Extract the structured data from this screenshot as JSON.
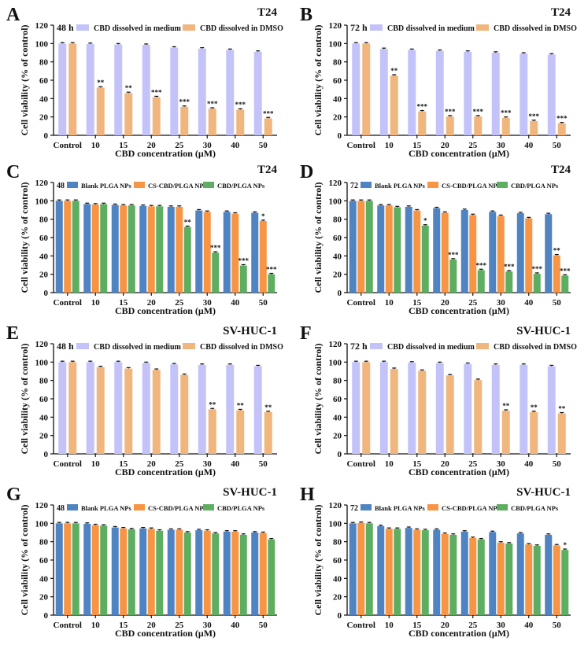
{
  "figure": {
    "ylabel": "Cell viability (% of control)",
    "xlabel": "CBD concentration (μM)",
    "categories": [
      "Control",
      "10",
      "15",
      "20",
      "25",
      "30",
      "40",
      "50"
    ],
    "yticks": [
      "0",
      "20",
      "40",
      "60",
      "80",
      "100",
      "120"
    ]
  },
  "chart_data": [
    {
      "panel": "A",
      "type": "bar",
      "cell": "T24",
      "time": "48 h",
      "ylim": [
        0,
        120
      ],
      "grid": false,
      "legend": "top",
      "series": [
        {
          "name": "CBD dissolved in medium",
          "color": "#c3c3fa",
          "values": [
            100,
            99.5,
            99,
            98.5,
            95.5,
            94.5,
            93,
            91
          ],
          "sig": [
            "",
            "",
            "",
            "",
            "",
            "",
            "",
            ""
          ]
        },
        {
          "name": "CBD dissolved in DMSO",
          "color": "#f0b67e",
          "values": [
            100,
            52,
            46,
            41.5,
            31,
            29,
            28,
            18.5
          ],
          "sig": [
            "",
            "**",
            "**",
            "***",
            "***",
            "***",
            "***",
            "***"
          ]
        }
      ]
    },
    {
      "panel": "B",
      "type": "bar",
      "cell": "T24",
      "time": "72 h",
      "ylim": [
        0,
        120
      ],
      "grid": false,
      "legend": "top",
      "series": [
        {
          "name": "CBD dissolved in medium",
          "color": "#c3c3fa",
          "values": [
            100,
            94,
            93,
            92,
            91,
            90,
            89,
            88
          ],
          "sig": [
            "",
            "",
            "",
            "",
            "",
            "",
            "",
            ""
          ]
        },
        {
          "name": "CBD dissolved in DMSO",
          "color": "#f0b67e",
          "values": [
            100,
            65,
            26,
            20.5,
            20.5,
            19,
            15.5,
            13
          ],
          "sig": [
            "",
            "**",
            "***",
            "***",
            "***",
            "***",
            "***",
            "***"
          ]
        }
      ]
    },
    {
      "panel": "C",
      "type": "bar",
      "cell": "T24",
      "time": "48 h",
      "ylim": [
        0,
        120
      ],
      "grid": false,
      "legend": "top",
      "series": [
        {
          "name": "Blank PLGA NPs",
          "color": "#4f83c2",
          "values": [
            100,
            96.5,
            95.5,
            94.5,
            93.5,
            89.5,
            88,
            87
          ],
          "sig": [
            "",
            "",
            "",
            "",
            "",
            "",
            "",
            ""
          ]
        },
        {
          "name": "CS-CBD/PLGA NPs",
          "color": "#f79545",
          "values": [
            100,
            96,
            95,
            94,
            93.5,
            88,
            86,
            78
          ],
          "sig": [
            "",
            "",
            "",
            "",
            "",
            "",
            "",
            "*"
          ]
        },
        {
          "name": "CBD/PLGA NPs",
          "color": "#5eae61",
          "values": [
            100,
            96.5,
            95,
            94,
            71.5,
            43.5,
            29.5,
            20
          ],
          "sig": [
            "",
            "",
            "",
            "",
            "**",
            "***",
            "***",
            "***"
          ]
        }
      ]
    },
    {
      "panel": "D",
      "type": "bar",
      "cell": "T24",
      "time": "72 h",
      "ylim": [
        0,
        120
      ],
      "grid": false,
      "legend": "top",
      "series": [
        {
          "name": "Blank PLGA NPs",
          "color": "#4f83c2",
          "values": [
            100,
            95,
            93.5,
            92,
            90,
            88,
            86.5,
            85.5
          ],
          "sig": [
            "",
            "",
            "",
            "",
            "",
            "",
            "",
            ""
          ]
        },
        {
          "name": "CS-CBD/PLGA NPs",
          "color": "#f79545",
          "values": [
            100,
            95,
            89.5,
            87,
            84.5,
            83.5,
            81,
            40.5
          ],
          "sig": [
            "",
            "",
            "",
            "",
            "",
            "",
            "",
            "**"
          ]
        },
        {
          "name": "CBD/PLGA NPs",
          "color": "#5eae61",
          "values": [
            100,
            93,
            73,
            36,
            24.5,
            23,
            20.5,
            18.5
          ],
          "sig": [
            "",
            "",
            "*",
            "***",
            "***",
            "***",
            "***",
            "***"
          ]
        }
      ]
    },
    {
      "panel": "E",
      "type": "bar",
      "cell": "SV-HUC-1",
      "time": "48 h",
      "ylim": [
        0,
        120
      ],
      "grid": false,
      "legend": "top",
      "series": [
        {
          "name": "CBD dissolved in medium",
          "color": "#c3c3fa",
          "values": [
            100,
            100,
            100,
            99,
            97.5,
            97,
            97,
            95.5
          ],
          "sig": [
            "",
            "",
            "",
            "",
            "",
            "",
            "",
            ""
          ]
        },
        {
          "name": "CBD dissolved in DMSO",
          "color": "#f0b67e",
          "values": [
            100,
            94.5,
            93,
            91.5,
            86,
            48.5,
            47.5,
            45.5
          ],
          "sig": [
            "",
            "",
            "",
            "",
            "",
            "**",
            "**",
            "**"
          ]
        }
      ]
    },
    {
      "panel": "F",
      "type": "bar",
      "cell": "SV-HUC-1",
      "time": "72 h",
      "ylim": [
        0,
        120
      ],
      "grid": false,
      "legend": "top",
      "series": [
        {
          "name": "CBD dissolved in medium",
          "color": "#c3c3fa",
          "values": [
            100,
            100,
            99.5,
            99,
            98,
            97,
            97,
            95.5
          ],
          "sig": [
            "",
            "",
            "",
            "",
            "",
            "",
            "",
            ""
          ]
        },
        {
          "name": "CBD dissolved in DMSO",
          "color": "#f0b67e",
          "values": [
            100,
            92.5,
            90.5,
            85.5,
            80.5,
            47,
            45.5,
            44
          ],
          "sig": [
            "",
            "",
            "",
            "",
            "",
            "**",
            "**",
            "**"
          ]
        }
      ]
    },
    {
      "panel": "G",
      "type": "bar",
      "cell": "SV-HUC-1",
      "time": "48 h",
      "ylim": [
        0,
        120
      ],
      "grid": false,
      "legend": "top",
      "series": [
        {
          "name": "Blank PLGA NPs",
          "color": "#4f83c2",
          "values": [
            100,
            99.5,
            95.5,
            94.5,
            93,
            92.5,
            91,
            90
          ],
          "sig": [
            "",
            "",
            "",
            "",
            "",
            "",
            "",
            ""
          ]
        },
        {
          "name": "CS-CBD/PLGA NPs",
          "color": "#f79545",
          "values": [
            100,
            98,
            94.5,
            94,
            93,
            92,
            91,
            89.5
          ],
          "sig": [
            "",
            "",
            "",
            "",
            "",
            "",
            "",
            ""
          ]
        },
        {
          "name": "CBD/PLGA NPs",
          "color": "#5eae61",
          "values": [
            100,
            97.5,
            93.5,
            92,
            90,
            89,
            87.5,
            82.5
          ],
          "sig": [
            "",
            "",
            "",
            "",
            "",
            "",
            "",
            ""
          ]
        }
      ]
    },
    {
      "panel": "H",
      "type": "bar",
      "cell": "SV-HUC-1",
      "time": "72 h",
      "ylim": [
        0,
        120
      ],
      "grid": false,
      "legend": "top",
      "series": [
        {
          "name": "Blank PLGA NPs",
          "color": "#4f83c2",
          "values": [
            100,
            97,
            95,
            93,
            91,
            90.5,
            89,
            87.5
          ],
          "sig": [
            "",
            "",
            "",
            "",
            "",
            "",
            "",
            ""
          ]
        },
        {
          "name": "CS-CBD/PLGA NPs",
          "color": "#f79545",
          "values": [
            100.5,
            94,
            93,
            88.5,
            84,
            79,
            77,
            76
          ],
          "sig": [
            "",
            "",
            "",
            "",
            "",
            "",
            "",
            ""
          ]
        },
        {
          "name": "CBD/PLGA NPs",
          "color": "#5eae61",
          "values": [
            100,
            94,
            92.5,
            87.5,
            82.5,
            78,
            75.5,
            71
          ],
          "sig": [
            "",
            "",
            "",
            "",
            "",
            "",
            "",
            "*"
          ]
        }
      ]
    }
  ]
}
